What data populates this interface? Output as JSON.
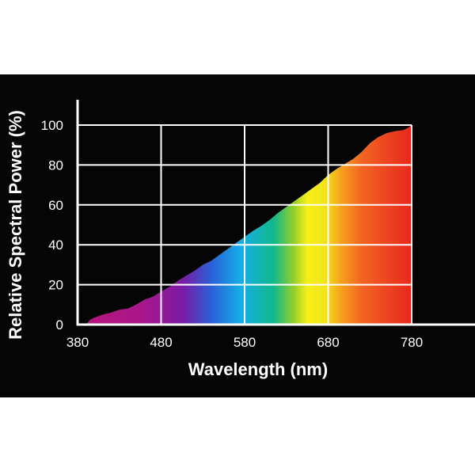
{
  "chart_data": {
    "type": "area",
    "title": "",
    "xlabel": "Wavelength (nm)",
    "ylabel": "Relative Spectral Power (%)",
    "xlim": [
      380,
      780
    ],
    "ylim": [
      0,
      100
    ],
    "x_ticks": [
      380,
      480,
      580,
      680,
      780
    ],
    "y_ticks": [
      0,
      20,
      40,
      60,
      80,
      100
    ],
    "grid": true,
    "legend": "none",
    "colors": {
      "background": "#050505",
      "grid": "#ffffff",
      "axis": "#ffffff",
      "text": "#ffffff"
    },
    "fill_gradient": [
      {
        "x": 390,
        "color": "#b5157a"
      },
      {
        "x": 460,
        "color": "#a8178c"
      },
      {
        "x": 505,
        "color": "#7a1aa5"
      },
      {
        "x": 540,
        "color": "#2a5fd6"
      },
      {
        "x": 575,
        "color": "#15aee8"
      },
      {
        "x": 615,
        "color": "#12b889"
      },
      {
        "x": 640,
        "color": "#9ccf25"
      },
      {
        "x": 655,
        "color": "#f7ef18"
      },
      {
        "x": 675,
        "color": "#f2e61a"
      },
      {
        "x": 695,
        "color": "#f7a21c"
      },
      {
        "x": 720,
        "color": "#f26522"
      },
      {
        "x": 780,
        "color": "#e9261d"
      }
    ],
    "series": [
      {
        "x": [
          390,
          395,
          400,
          410,
          420,
          430,
          440,
          450,
          460,
          470,
          480,
          490,
          500,
          510,
          520,
          530,
          540,
          550,
          560,
          570,
          580,
          590,
          600,
          610,
          620,
          630,
          640,
          650,
          660,
          670,
          680,
          690,
          700,
          710,
          720,
          730,
          740,
          750,
          760,
          770,
          775,
          780
        ],
        "values": [
          0,
          2.5,
          3.5,
          5,
          6,
          7.5,
          8,
          10,
          12.5,
          14,
          16.5,
          19,
          22,
          24.5,
          27,
          30,
          32,
          35,
          38,
          41,
          44,
          47,
          49.5,
          52.5,
          56,
          59,
          62,
          65,
          68,
          71,
          75,
          78,
          80.5,
          83,
          86.5,
          91,
          94,
          96,
          97,
          97.5,
          98.5,
          100
        ]
      }
    ]
  }
}
